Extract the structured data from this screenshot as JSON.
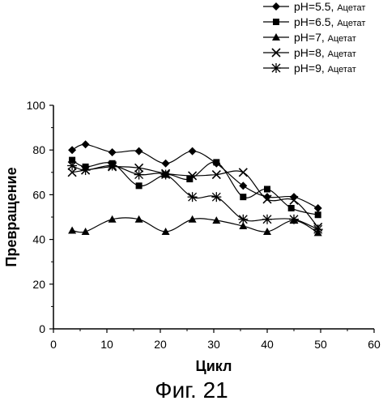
{
  "chart_data": {
    "type": "line",
    "xlabel": "Цикл",
    "ylabel": "Превращение",
    "xlim": [
      0,
      60
    ],
    "ylim": [
      0,
      100
    ],
    "xticks": [
      0,
      10,
      20,
      30,
      40,
      50,
      60
    ],
    "yticks": [
      0,
      20,
      40,
      60,
      80,
      100
    ],
    "grid": false,
    "legend_position": "top-right, outside plot",
    "series": [
      {
        "name": "pH=5.5",
        "name_suffix": "Ацетат",
        "marker": "diamond",
        "points": [
          [
            3.5,
            80
          ],
          [
            6,
            82.5
          ],
          [
            11,
            79
          ],
          [
            16,
            79.5
          ],
          [
            21,
            74
          ],
          [
            26,
            79.5
          ],
          [
            30.5,
            74
          ],
          [
            35.5,
            64
          ],
          [
            40,
            59
          ],
          [
            45,
            59
          ],
          [
            49.5,
            54
          ]
        ]
      },
      {
        "name": "pH=6.5",
        "name_suffix": "Ацетат",
        "marker": "square",
        "points": [
          [
            3.5,
            75.5
          ],
          [
            6,
            72.5
          ],
          [
            11,
            74
          ],
          [
            16,
            64
          ],
          [
            21,
            69
          ],
          [
            25.5,
            67
          ],
          [
            30.5,
            74.5
          ],
          [
            35.5,
            59
          ],
          [
            40,
            62.5
          ],
          [
            44.5,
            54
          ],
          [
            49.5,
            51
          ]
        ]
      },
      {
        "name": "pH=7",
        "name_suffix": "Ацетат",
        "marker": "triangle",
        "points": [
          [
            3.5,
            44
          ],
          [
            6,
            43.5
          ],
          [
            11,
            49
          ],
          [
            16,
            49
          ],
          [
            21,
            43.5
          ],
          [
            26,
            49
          ],
          [
            30.5,
            48.5
          ],
          [
            35.5,
            46
          ],
          [
            40,
            43.5
          ],
          [
            45,
            48.5
          ],
          [
            49.5,
            43
          ]
        ]
      },
      {
        "name": "pH=8",
        "name_suffix": "Ацетат",
        "marker": "x",
        "points": [
          [
            3.5,
            70
          ],
          [
            6,
            71
          ],
          [
            11,
            72.5
          ],
          [
            16,
            72
          ],
          [
            21,
            69.5
          ],
          [
            26,
            68.5
          ],
          [
            30.5,
            69
          ],
          [
            35.5,
            70
          ],
          [
            40,
            58
          ],
          [
            45,
            57.5
          ],
          [
            49.5,
            45.5
          ]
        ]
      },
      {
        "name": "pH=9",
        "name_suffix": "Ацетат",
        "marker": "asterisk",
        "points": [
          [
            3.5,
            73
          ],
          [
            6,
            71
          ],
          [
            11,
            73
          ],
          [
            16,
            69
          ],
          [
            21,
            69
          ],
          [
            26,
            59
          ],
          [
            30.5,
            59
          ],
          [
            35.5,
            49
          ],
          [
            40,
            49
          ],
          [
            45,
            49
          ],
          [
            49.5,
            44.5
          ]
        ]
      }
    ]
  },
  "caption": "Фиг. 21"
}
